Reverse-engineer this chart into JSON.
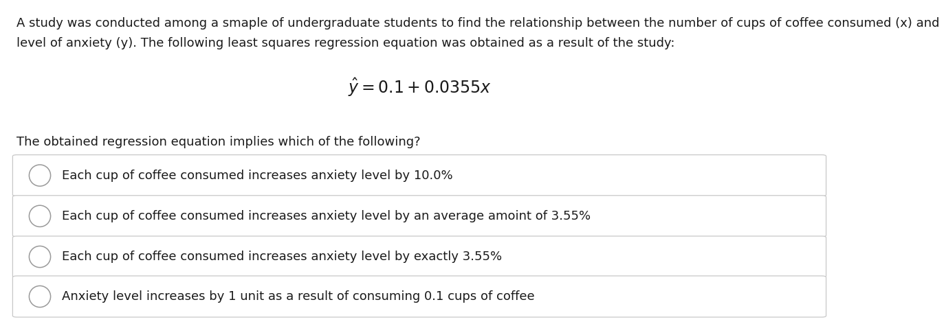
{
  "background_color": "#ffffff",
  "text_color": "#1a1a1a",
  "paragraph_line1": "A study was conducted among a smaple of undergraduate students to find the relationship between the number of cups of coffee consumed (x) and",
  "paragraph_line2": "level of anxiety (y). The following least squares regression equation was obtained as a result of the study:",
  "equation": "$\\hat{y} = 0.1 + 0.0355x$",
  "question": "The obtained regression equation implies which of the following?",
  "options": [
    "Each cup of coffee consumed increases anxiety level by 10.0%",
    "Each cup of coffee consumed increases anxiety level by an average amoint of 3.55%",
    "Each cup of coffee consumed increases anxiety level by exactly 3.55%",
    "Anxiety level increases by 1 unit as a result of consuming 0.1 cups of coffee"
  ],
  "option_box_color": "#ffffff",
  "option_border_color": "#c8c8c8",
  "circle_edge_color": "#999999",
  "font_size_paragraph": 13.0,
  "font_size_equation": 17,
  "font_size_question": 13.0,
  "font_size_option": 13.0,
  "fig_width": 12.0,
  "fig_height": 4.23
}
